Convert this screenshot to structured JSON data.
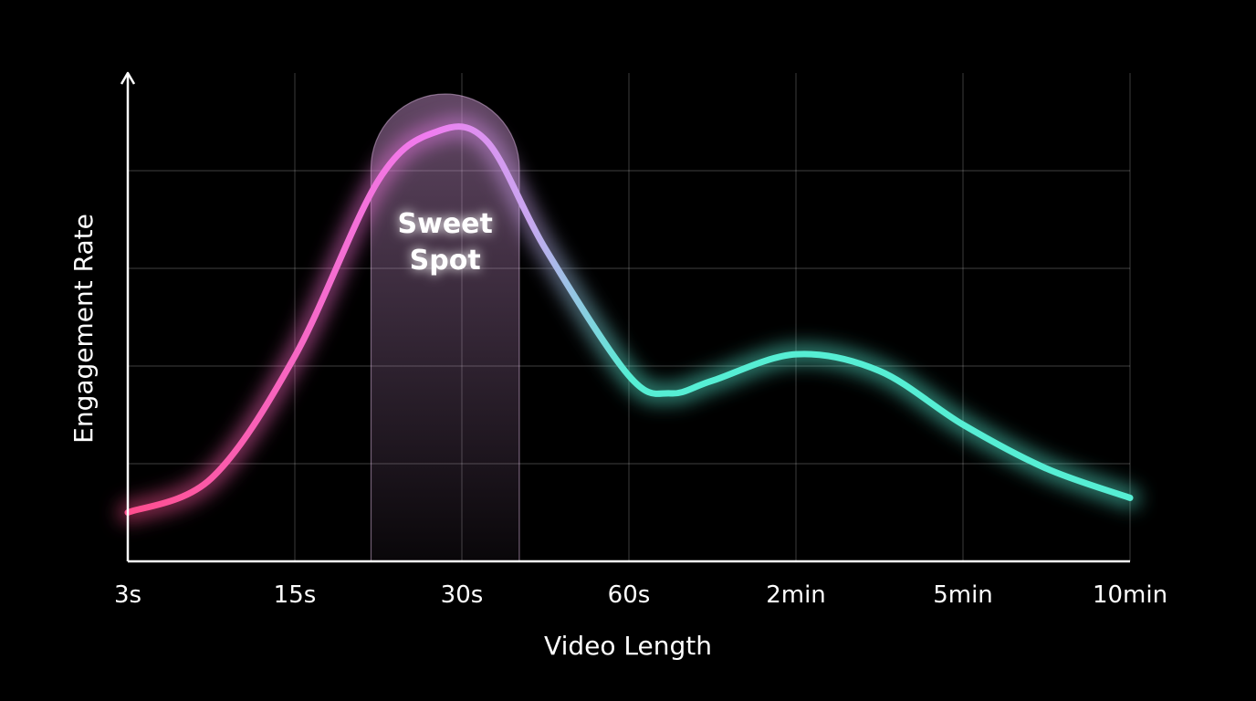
{
  "chart_data": {
    "type": "line",
    "xlabel": "Video Length",
    "ylabel": "Engagement Rate",
    "categories": [
      "3s",
      "15s",
      "30s",
      "60s",
      "2min",
      "5min",
      "10min"
    ],
    "xlim": [
      0,
      6
    ],
    "ylim": [
      0,
      5
    ],
    "grid": true,
    "series": [
      {
        "x": [
          0,
          0.5,
          1,
          1.5,
          1.85,
          2.15,
          2.5,
          3,
          3.25,
          3.5,
          4,
          4.5,
          5,
          5.5,
          6
        ],
        "values": [
          0.5,
          0.85,
          2.1,
          3.9,
          4.4,
          4.3,
          3.2,
          1.9,
          1.72,
          1.85,
          2.12,
          1.95,
          1.4,
          0.95,
          0.65
        ],
        "colors": {
          "start": "#ff4d8d",
          "mid": "#f07cf0",
          "end": "#56eed4"
        }
      }
    ],
    "annotations": [
      {
        "text": [
          "Sweet",
          "Spot"
        ],
        "x_start": 1.5,
        "x_end": 2.3,
        "color": "#e6a8ec"
      }
    ]
  }
}
